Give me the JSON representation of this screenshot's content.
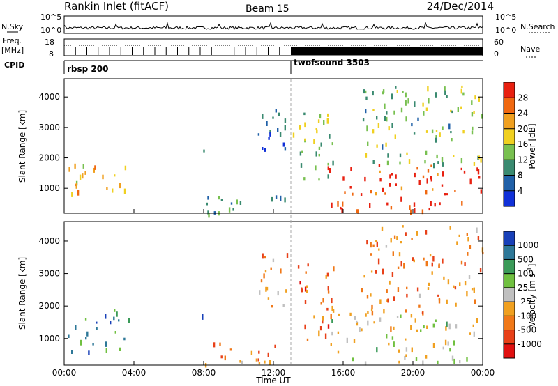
{
  "header": {
    "title": "Rankin Inlet (fitACF)",
    "beam": "Beam 15",
    "date": "24/Dec/2014"
  },
  "noise_panel": {
    "left_label": "N.Sky",
    "right_label": "N.Search",
    "left_ticks": [
      "10^5",
      "10^0"
    ],
    "right_ticks": [
      "10^5",
      "10^0"
    ]
  },
  "freq_panel": {
    "left_label_1": "Freq.",
    "left_label_2": "[MHz]",
    "right_label": "Nave",
    "left_ticks": [
      "18",
      "8"
    ],
    "right_ticks": [
      "60",
      "0"
    ]
  },
  "cpid": {
    "label": "CPID",
    "programs": [
      {
        "name": "rbsp 200",
        "start_hour": 0
      },
      {
        "name": "twofsound 3503",
        "start_hour": 13
      }
    ]
  },
  "chart_data": [
    {
      "type": "heatmap",
      "name": "power",
      "ylabel": "Slant Range [km]",
      "xlabel": "",
      "xlim": [
        0,
        24
      ],
      "ylim": [
        180,
        4600
      ],
      "y_ticks": [
        "1000",
        "2000",
        "3000",
        "4000"
      ],
      "colorbar": {
        "label": "Power [dB]",
        "ticks": [
          "4",
          "8",
          "12",
          "16",
          "20",
          "24",
          "28"
        ],
        "colors": [
          "#1030d8",
          "#2060a8",
          "#3a8a70",
          "#78c050",
          "#f0d020",
          "#f0a020",
          "#f06810",
          "#e82010"
        ]
      },
      "regions": [
        {
          "t": [
            0.2,
            3.8
          ],
          "r": [
            800,
            1900
          ],
          "level": 0.65
        },
        {
          "t": [
            7.8,
            8.0
          ],
          "r": [
            1700,
            2300
          ],
          "level": 0.35
        },
        {
          "t": [
            8.0,
            12.8
          ],
          "r": [
            200,
            900
          ],
          "level": 0.3
        },
        {
          "t": [
            11.0,
            13.0
          ],
          "r": [
            2000,
            3700
          ],
          "level": 0.2
        },
        {
          "t": [
            13.0,
            15.5
          ],
          "r": [
            1200,
            3500
          ],
          "level": 0.45
        },
        {
          "t": [
            15.0,
            24.0
          ],
          "r": [
            300,
            1800
          ],
          "level": 0.92
        },
        {
          "t": [
            17.0,
            24.0
          ],
          "r": [
            1800,
            4500
          ],
          "level": 0.4
        }
      ]
    },
    {
      "type": "heatmap",
      "name": "velocity",
      "ylabel": "Slant Range [km]",
      "xlabel": "Time UT",
      "xlim": [
        0,
        24
      ],
      "ylim": [
        180,
        4600
      ],
      "x_ticks": [
        "00:00",
        "04:00",
        "08:00",
        "12:00",
        "16:00",
        "20:00",
        "00:00"
      ],
      "y_ticks": [
        "1000",
        "2000",
        "3000",
        "4000"
      ],
      "colorbar": {
        "label": "Velocity [m s^-1]",
        "ticks": [
          "1000",
          "500",
          "100",
          "25",
          "-25",
          "-100",
          "-500",
          "-1000"
        ],
        "colors": [
          "#1840b8",
          "#2e7898",
          "#3a9a58",
          "#70c040",
          "#c0c0c0",
          "#f0a020",
          "#f07818",
          "#e84018",
          "#e01010"
        ]
      },
      "regions": [
        {
          "t": [
            0.2,
            3.8
          ],
          "r": [
            600,
            1900
          ],
          "level": 0.2
        },
        {
          "t": [
            7.8,
            8.0
          ],
          "r": [
            1700,
            2300
          ],
          "level": 0.1
        },
        {
          "t": [
            8.0,
            12.8
          ],
          "r": [
            200,
            900
          ],
          "level": 0.7
        },
        {
          "t": [
            11.0,
            13.0
          ],
          "r": [
            2000,
            3700
          ],
          "level": 0.65
        },
        {
          "t": [
            13.0,
            15.5
          ],
          "r": [
            1000,
            3500
          ],
          "level": 0.75
        },
        {
          "t": [
            15.0,
            24.0
          ],
          "r": [
            300,
            1800
          ],
          "level": 0.5
        },
        {
          "t": [
            17.0,
            24.0
          ],
          "r": [
            1800,
            4500
          ],
          "level": 0.7
        }
      ]
    }
  ]
}
